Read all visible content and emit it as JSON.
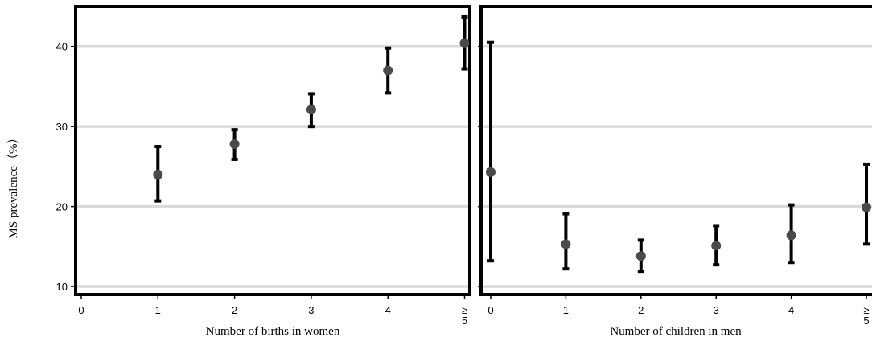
{
  "ylabel": "MS prevalence（%）",
  "chart_data": [
    {
      "type": "scatter",
      "title": "",
      "xlabel": "Number of births in women",
      "ylabel": "MS prevalence（%）",
      "categories": [
        "0",
        "1",
        "2",
        "3",
        "4",
        "≥ 5"
      ],
      "ylim": [
        9,
        45
      ],
      "yticks": [
        10,
        20,
        30,
        40
      ],
      "grid": true,
      "points": [
        {
          "x": "1",
          "y": 24.0,
          "lower": 20.7,
          "upper": 27.5
        },
        {
          "x": "2",
          "y": 27.8,
          "lower": 25.9,
          "upper": 29.6
        },
        {
          "x": "3",
          "y": 32.1,
          "lower": 30.0,
          "upper": 34.1
        },
        {
          "x": "4",
          "y": 37.0,
          "lower": 34.2,
          "upper": 39.8
        },
        {
          "x": "≥ 5",
          "y": 40.4,
          "lower": 37.2,
          "upper": 43.7
        }
      ]
    },
    {
      "type": "scatter",
      "title": "",
      "xlabel": "Number of children in men",
      "ylabel": "MS prevalence（%）",
      "categories": [
        "0",
        "1",
        "2",
        "3",
        "4",
        "≥ 5"
      ],
      "ylim": [
        9,
        45
      ],
      "yticks": [
        10,
        20,
        30,
        40
      ],
      "grid": true,
      "points": [
        {
          "x": "0",
          "y": 24.3,
          "lower": 13.2,
          "upper": 40.5
        },
        {
          "x": "1",
          "y": 15.3,
          "lower": 12.2,
          "upper": 19.1
        },
        {
          "x": "2",
          "y": 13.8,
          "lower": 11.9,
          "upper": 15.8
        },
        {
          "x": "3",
          "y": 15.1,
          "lower": 12.7,
          "upper": 17.6
        },
        {
          "x": "4",
          "y": 16.4,
          "lower": 13.0,
          "upper": 20.2
        },
        {
          "x": "≥ 5",
          "y": 19.9,
          "lower": 15.3,
          "upper": 25.3
        }
      ]
    }
  ]
}
